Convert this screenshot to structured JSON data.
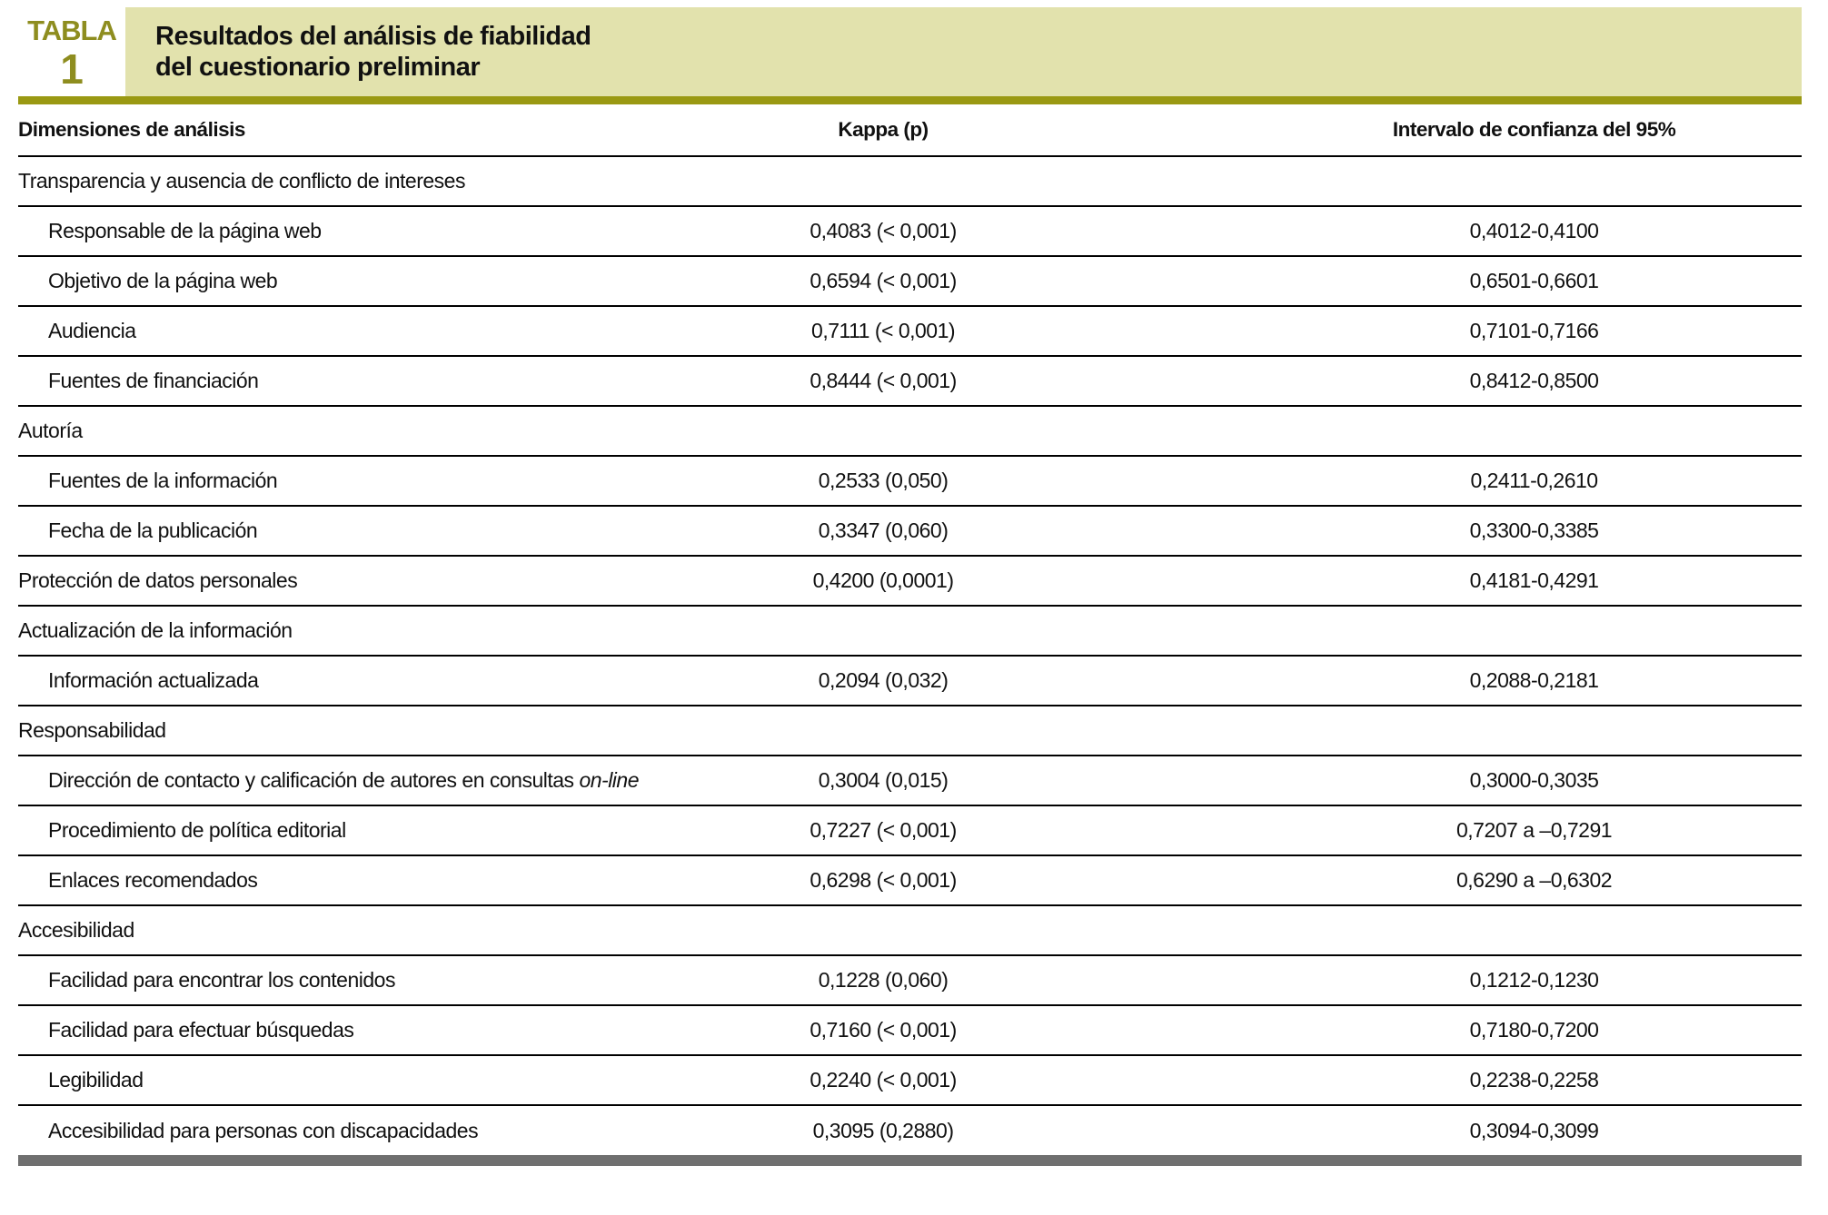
{
  "figure": {
    "label_word": "TABLA",
    "label_number": "1",
    "title_line1": "Resultados del análisis de fiabilidad",
    "title_line2": "del cuestionario preliminar"
  },
  "colors": {
    "accent_olive": "#8e8d1f",
    "header_rule_olive": "#9a9913",
    "title_band_khaki": "#e2e2ad",
    "bottom_bar_gray": "#6f6f6f"
  },
  "table": {
    "columns": [
      "Dimensiones de análisis",
      "Kappa (p)",
      "Intervalo de confianza del 95%"
    ],
    "rows": [
      {
        "type": "section",
        "label": "Transparencia y ausencia de conflicto de intereses",
        "kappa": "",
        "ci": ""
      },
      {
        "type": "item",
        "label": "Responsable de la página web",
        "kappa": "0,4083 (< 0,001)",
        "ci": "0,4012-0,4100"
      },
      {
        "type": "item",
        "label": "Objetivo de la página web",
        "kappa": "0,6594 (< 0,001)",
        "ci": "0,6501-0,6601"
      },
      {
        "type": "item",
        "label": "Audiencia",
        "kappa": "0,7111 (< 0,001)",
        "ci": "0,7101-0,7166"
      },
      {
        "type": "item",
        "label": "Fuentes de financiación",
        "kappa": "0,8444 (< 0,001)",
        "ci": "0,8412-0,8500"
      },
      {
        "type": "section",
        "label": "Autoría",
        "kappa": "",
        "ci": ""
      },
      {
        "type": "item",
        "label": "Fuentes de la información",
        "kappa": "0,2533 (0,050)",
        "ci": "0,2411-0,2610"
      },
      {
        "type": "item",
        "label": "Fecha de la publicación",
        "kappa": "0,3347 (0,060)",
        "ci": "0,3300-0,3385"
      },
      {
        "type": "section",
        "label": "Protección de datos personales",
        "kappa": "0,4200 (0,0001)",
        "ci": "0,4181-0,4291"
      },
      {
        "type": "section",
        "label": "Actualización de la información",
        "kappa": "",
        "ci": ""
      },
      {
        "type": "item",
        "label": "Información actualizada",
        "kappa": "0,2094 (0,032)",
        "ci": "0,2088-0,2181"
      },
      {
        "type": "section",
        "label": "Responsabilidad",
        "kappa": "",
        "ci": ""
      },
      {
        "type": "item",
        "label": "Dirección de contacto y calificación de autores en consultas ",
        "label_italic": "on-line",
        "kappa": "0,3004 (0,015)",
        "ci": "0,3000-0,3035"
      },
      {
        "type": "item",
        "label": "Procedimiento de política editorial",
        "kappa": "0,7227 (< 0,001)",
        "ci": "0,7207 a –0,7291"
      },
      {
        "type": "item",
        "label": "Enlaces recomendados",
        "kappa": "0,6298 (< 0,001)",
        "ci": "0,6290 a –0,6302"
      },
      {
        "type": "section",
        "label": "Accesibilidad",
        "kappa": "",
        "ci": ""
      },
      {
        "type": "item",
        "label": "Facilidad para encontrar los contenidos",
        "kappa": "0,1228 (0,060)",
        "ci": "0,1212-0,1230"
      },
      {
        "type": "item",
        "label": "Facilidad para efectuar búsquedas",
        "kappa": "0,7160 (< 0,001)",
        "ci": "0,7180-0,7200"
      },
      {
        "type": "item",
        "label": "Legibilidad",
        "kappa": "0,2240 (< 0,001)",
        "ci": "0,2238-0,2258"
      },
      {
        "type": "item",
        "label": "Accesibilidad para personas con discapacidades",
        "kappa": "0,3095 (0,2880)",
        "ci": "0,3094-0,3099"
      }
    ]
  }
}
